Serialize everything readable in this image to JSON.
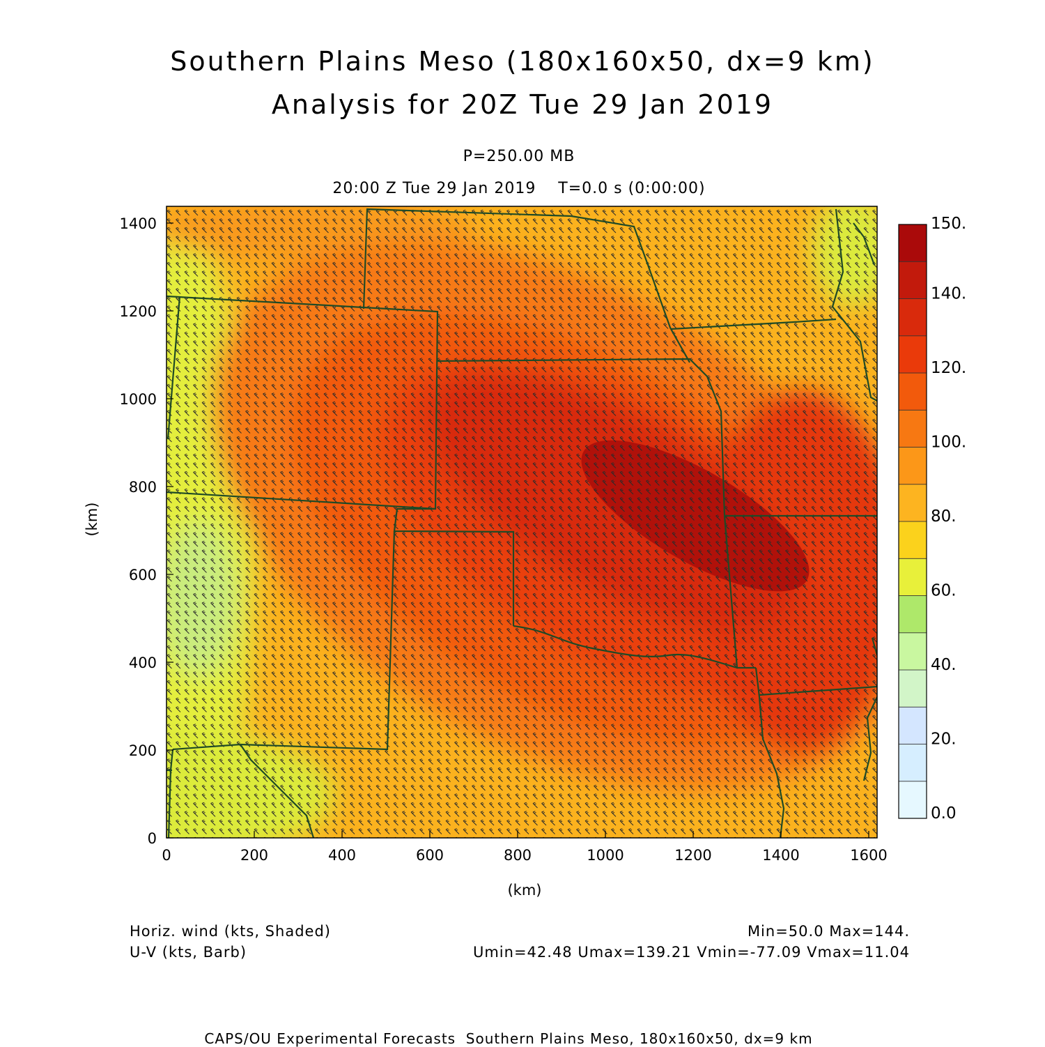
{
  "header": {
    "title_line1": "Southern Plains Meso (180x160x50, dx=9 km)",
    "title_line2": "Analysis for 20Z Tue 29 Jan 2019",
    "level": "P=250.00 MB",
    "time": "20:00 Z Tue 29 Jan 2019    T=0.0 s (0:00:00)"
  },
  "axes": {
    "x_label": "(km)",
    "y_label": "(km)",
    "x_ticks": [
      0,
      200,
      400,
      600,
      800,
      1000,
      1200,
      1400,
      1600
    ],
    "y_ticks": [
      0,
      200,
      400,
      600,
      800,
      1000,
      1200,
      1400
    ],
    "x_range": [
      0,
      1620
    ],
    "y_range": [
      0,
      1440
    ]
  },
  "colorbar": {
    "labels": [
      "0.0",
      "20.",
      "40.",
      "60.",
      "80.",
      "100.",
      "120.",
      "140.",
      "150."
    ],
    "colors": [
      "#e6f8ff",
      "#d6eeff",
      "#d4e6ff",
      "#d2f5c8",
      "#c9f7a0",
      "#aee86a",
      "#e8f03a",
      "#fbd21c",
      "#fdb420",
      "#fc9718",
      "#f77812",
      "#f25a0c",
      "#ea3a0a",
      "#d92a0c",
      "#c21a0c",
      "#aa0a0a"
    ]
  },
  "map": {
    "field": "Horizontal wind speed with U-V barbs",
    "min": 50.0,
    "max": 144.0,
    "boundary_color": "#1f4a26",
    "barb_color": "#2a2a2a"
  },
  "info": {
    "left_line1": "Horiz. wind (kts, Shaded)",
    "left_line2": "U-V (kts, Barb)",
    "right_line1": "Min=50.0 Max=144.",
    "right_line2": "Umin=42.48 Umax=139.21 Vmin=-77.09 Vmax=11.04"
  },
  "footer": "CAPS/OU Experimental Forecasts  Southern Plains Meso, 180x160x50, dx=9 km"
}
